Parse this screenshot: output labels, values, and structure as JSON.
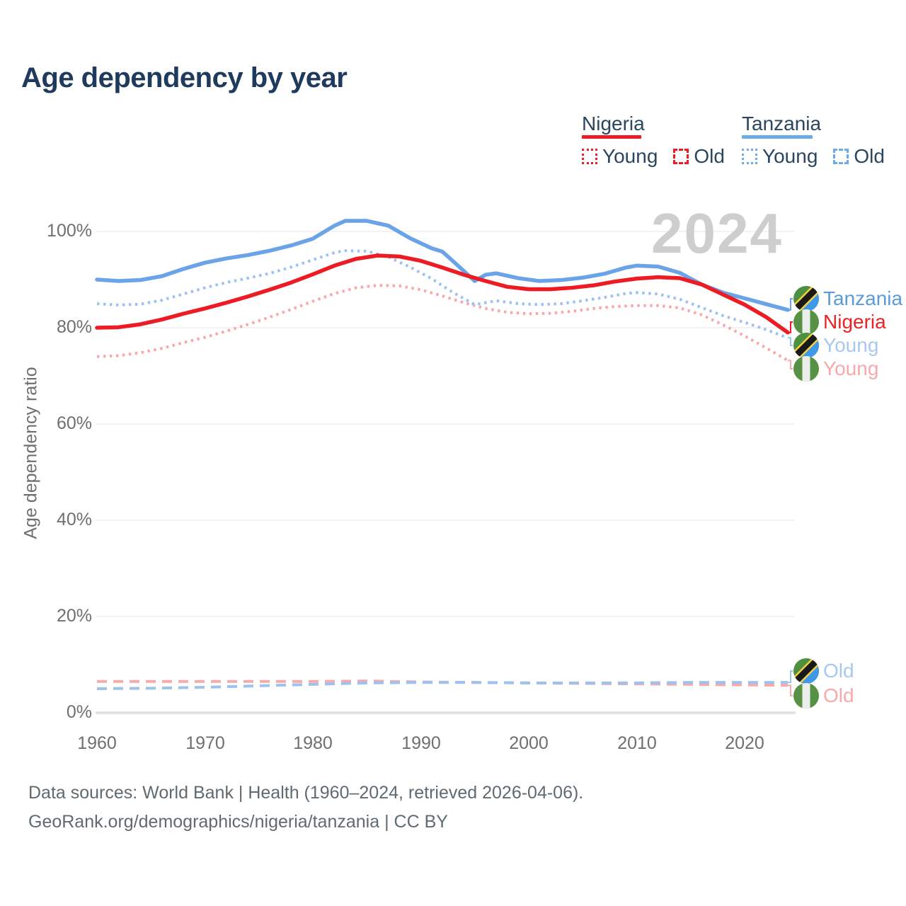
{
  "title": "Age dependency by year",
  "watermark": "2024",
  "legend": {
    "nigeria": {
      "name": "Nigeria",
      "young": "Young",
      "old": "Old"
    },
    "tanzania": {
      "name": "Tanzania",
      "young": "Young",
      "old": "Old"
    }
  },
  "axis": {
    "ylabel": "Age dependency ratio",
    "y_ticks": [
      "100%",
      "80%",
      "60%",
      "40%",
      "20%",
      "0%"
    ],
    "x_ticks": [
      "1960",
      "1970",
      "1980",
      "1990",
      "2000",
      "2010",
      "2020"
    ]
  },
  "end_labels": {
    "tanzania_total": "Tanzania",
    "nigeria_total": "Nigeria",
    "tanzania_young": "Young",
    "nigeria_young": "Young",
    "tanzania_old": "Old",
    "nigeria_old": "Old"
  },
  "footer": {
    "line1": "Data sources: World Bank | Health (1960–2024, retrieved 2026-04-06).",
    "line2": "GeoRank.org/demographics/nigeria/tanzania | CC BY"
  },
  "colors": {
    "title_navy": "#1e3a5c",
    "nigeria_red": "#ed1c24",
    "tanzania_blue": "#6aa3e8",
    "nigeria_light": "#f7a9ac",
    "tanzania_light": "#9dc2ef",
    "gridline": "#ededed",
    "axis_text": "#6f6f6f",
    "watermark_gray": "#cecece"
  },
  "chart_data": {
    "type": "line",
    "title": "Age dependency by year",
    "xlabel": "",
    "ylabel": "Age dependency ratio",
    "xlim": [
      1960,
      2024
    ],
    "ylim": [
      0,
      100
    ],
    "x_ticks": [
      1960,
      1970,
      1980,
      1990,
      2000,
      2010,
      2020
    ],
    "y_ticks": [
      0,
      20,
      40,
      60,
      80,
      100
    ],
    "grid": "horizontal",
    "legend_position": "top-right",
    "unit": "%",
    "series": [
      {
        "id": "nigeria_young",
        "name": "Nigeria Young",
        "country": "Nigeria",
        "component": "young",
        "style": "dotted",
        "color": "#f7a9ac",
        "points": [
          [
            1960,
            74
          ],
          [
            1962,
            74.2
          ],
          [
            1964,
            74.8
          ],
          [
            1966,
            75.7
          ],
          [
            1968,
            76.9
          ],
          [
            1970,
            78
          ],
          [
            1972,
            79.3
          ],
          [
            1974,
            80.7
          ],
          [
            1976,
            82.2
          ],
          [
            1978,
            83.8
          ],
          [
            1980,
            85.5
          ],
          [
            1982,
            87.1
          ],
          [
            1984,
            88.3
          ],
          [
            1986,
            88.8
          ],
          [
            1988,
            88.7
          ],
          [
            1990,
            87.9
          ],
          [
            1992,
            86.6
          ],
          [
            1994,
            85.2
          ],
          [
            1996,
            84
          ],
          [
            1998,
            83.2
          ],
          [
            2000,
            82.9
          ],
          [
            2002,
            83
          ],
          [
            2004,
            83.4
          ],
          [
            2006,
            84
          ],
          [
            2008,
            84.4
          ],
          [
            2010,
            84.6
          ],
          [
            2012,
            84.6
          ],
          [
            2014,
            84.1
          ],
          [
            2016,
            82.7
          ],
          [
            2018,
            80.6
          ],
          [
            2020,
            78.3
          ],
          [
            2022,
            75.8
          ],
          [
            2024,
            73.2
          ]
        ]
      },
      {
        "id": "tanzania_young",
        "name": "Tanzania Young",
        "country": "Tanzania",
        "component": "young",
        "style": "dotted",
        "color": "#9dc2ef",
        "points": [
          [
            1960,
            85
          ],
          [
            1962,
            84.7
          ],
          [
            1964,
            84.9
          ],
          [
            1966,
            85.7
          ],
          [
            1968,
            87
          ],
          [
            1970,
            88.3
          ],
          [
            1972,
            89.4
          ],
          [
            1974,
            90.3
          ],
          [
            1976,
            91.3
          ],
          [
            1978,
            92.6
          ],
          [
            1980,
            94.1
          ],
          [
            1982,
            95.6
          ],
          [
            1983,
            96
          ],
          [
            1985,
            95.9
          ],
          [
            1987,
            94.7
          ],
          [
            1989,
            92.6
          ],
          [
            1991,
            90.2
          ],
          [
            1993,
            87.3
          ],
          [
            1995,
            84.8
          ],
          [
            1997,
            85.6
          ],
          [
            1999,
            85
          ],
          [
            2001,
            84.8
          ],
          [
            2003,
            85
          ],
          [
            2005,
            85.6
          ],
          [
            2007,
            86.3
          ],
          [
            2009,
            87.1
          ],
          [
            2010,
            87.3
          ],
          [
            2012,
            87
          ],
          [
            2014,
            85.9
          ],
          [
            2016,
            84.2
          ],
          [
            2018,
            82.5
          ],
          [
            2020,
            81.1
          ],
          [
            2022,
            79.6
          ],
          [
            2024,
            77.9
          ]
        ]
      },
      {
        "id": "nigeria_old",
        "name": "Nigeria Old",
        "country": "Nigeria",
        "component": "old",
        "style": "dashed",
        "color": "#f7a9ac",
        "points": [
          [
            1960,
            6.5
          ],
          [
            1965,
            6.5
          ],
          [
            1970,
            6.5
          ],
          [
            1975,
            6.5
          ],
          [
            1980,
            6.5
          ],
          [
            1985,
            6.6
          ],
          [
            1990,
            6.4
          ],
          [
            1995,
            6.3
          ],
          [
            2000,
            6.2
          ],
          [
            2005,
            6.1
          ],
          [
            2010,
            6
          ],
          [
            2015,
            5.9
          ],
          [
            2020,
            5.8
          ],
          [
            2024,
            5.7
          ]
        ]
      },
      {
        "id": "tanzania_old",
        "name": "Tanzania Old",
        "country": "Tanzania",
        "component": "old",
        "style": "dashed",
        "color": "#9dc2ef",
        "points": [
          [
            1960,
            5
          ],
          [
            1965,
            5.1
          ],
          [
            1970,
            5.3
          ],
          [
            1975,
            5.6
          ],
          [
            1980,
            5.9
          ],
          [
            1985,
            6.2
          ],
          [
            1990,
            6.3
          ],
          [
            1995,
            6.3
          ],
          [
            2000,
            6.2
          ],
          [
            2005,
            6.2
          ],
          [
            2010,
            6.2
          ],
          [
            2015,
            6.3
          ],
          [
            2020,
            6.3
          ],
          [
            2024,
            6.3
          ]
        ]
      },
      {
        "id": "tanzania_total",
        "name": "Tanzania",
        "country": "Tanzania",
        "component": "total",
        "style": "solid",
        "color": "#6aa3e8",
        "points": [
          [
            1960,
            90
          ],
          [
            1962,
            89.7
          ],
          [
            1964,
            89.9
          ],
          [
            1966,
            90.7
          ],
          [
            1968,
            92.2
          ],
          [
            1970,
            93.5
          ],
          [
            1972,
            94.4
          ],
          [
            1974,
            95.1
          ],
          [
            1976,
            96
          ],
          [
            1978,
            97.1
          ],
          [
            1980,
            98.5
          ],
          [
            1982,
            101.2
          ],
          [
            1983,
            102.2
          ],
          [
            1985,
            102.2
          ],
          [
            1987,
            101.2
          ],
          [
            1989,
            98.6
          ],
          [
            1991,
            96.5
          ],
          [
            1992,
            95.8
          ],
          [
            1993,
            93.8
          ],
          [
            1995,
            89.7
          ],
          [
            1996,
            91
          ],
          [
            1997,
            91.3
          ],
          [
            1999,
            90.3
          ],
          [
            2001,
            89.7
          ],
          [
            2003,
            89.9
          ],
          [
            2005,
            90.4
          ],
          [
            2007,
            91.2
          ],
          [
            2009,
            92.5
          ],
          [
            2010,
            92.9
          ],
          [
            2012,
            92.7
          ],
          [
            2014,
            91.4
          ],
          [
            2016,
            89
          ],
          [
            2018,
            87.3
          ],
          [
            2020,
            86.1
          ],
          [
            2022,
            84.9
          ],
          [
            2024,
            83.7
          ]
        ]
      },
      {
        "id": "nigeria_total",
        "name": "Nigeria",
        "country": "Nigeria",
        "component": "total",
        "style": "solid",
        "color": "#ed1c24",
        "points": [
          [
            1960,
            80
          ],
          [
            1962,
            80.1
          ],
          [
            1964,
            80.7
          ],
          [
            1966,
            81.7
          ],
          [
            1968,
            82.9
          ],
          [
            1970,
            84
          ],
          [
            1972,
            85.2
          ],
          [
            1974,
            86.5
          ],
          [
            1976,
            87.9
          ],
          [
            1978,
            89.4
          ],
          [
            1980,
            91.1
          ],
          [
            1982,
            92.9
          ],
          [
            1984,
            94.3
          ],
          [
            1986,
            95
          ],
          [
            1988,
            94.8
          ],
          [
            1990,
            93.9
          ],
          [
            1992,
            92.5
          ],
          [
            1994,
            91
          ],
          [
            1996,
            89.7
          ],
          [
            1998,
            88.5
          ],
          [
            2000,
            88
          ],
          [
            2002,
            88
          ],
          [
            2004,
            88.3
          ],
          [
            2006,
            88.8
          ],
          [
            2008,
            89.6
          ],
          [
            2010,
            90.2
          ],
          [
            2012,
            90.5
          ],
          [
            2014,
            90.3
          ],
          [
            2016,
            89
          ],
          [
            2018,
            86.9
          ],
          [
            2020,
            84.8
          ],
          [
            2022,
            82.2
          ],
          [
            2024,
            79
          ]
        ]
      }
    ]
  }
}
